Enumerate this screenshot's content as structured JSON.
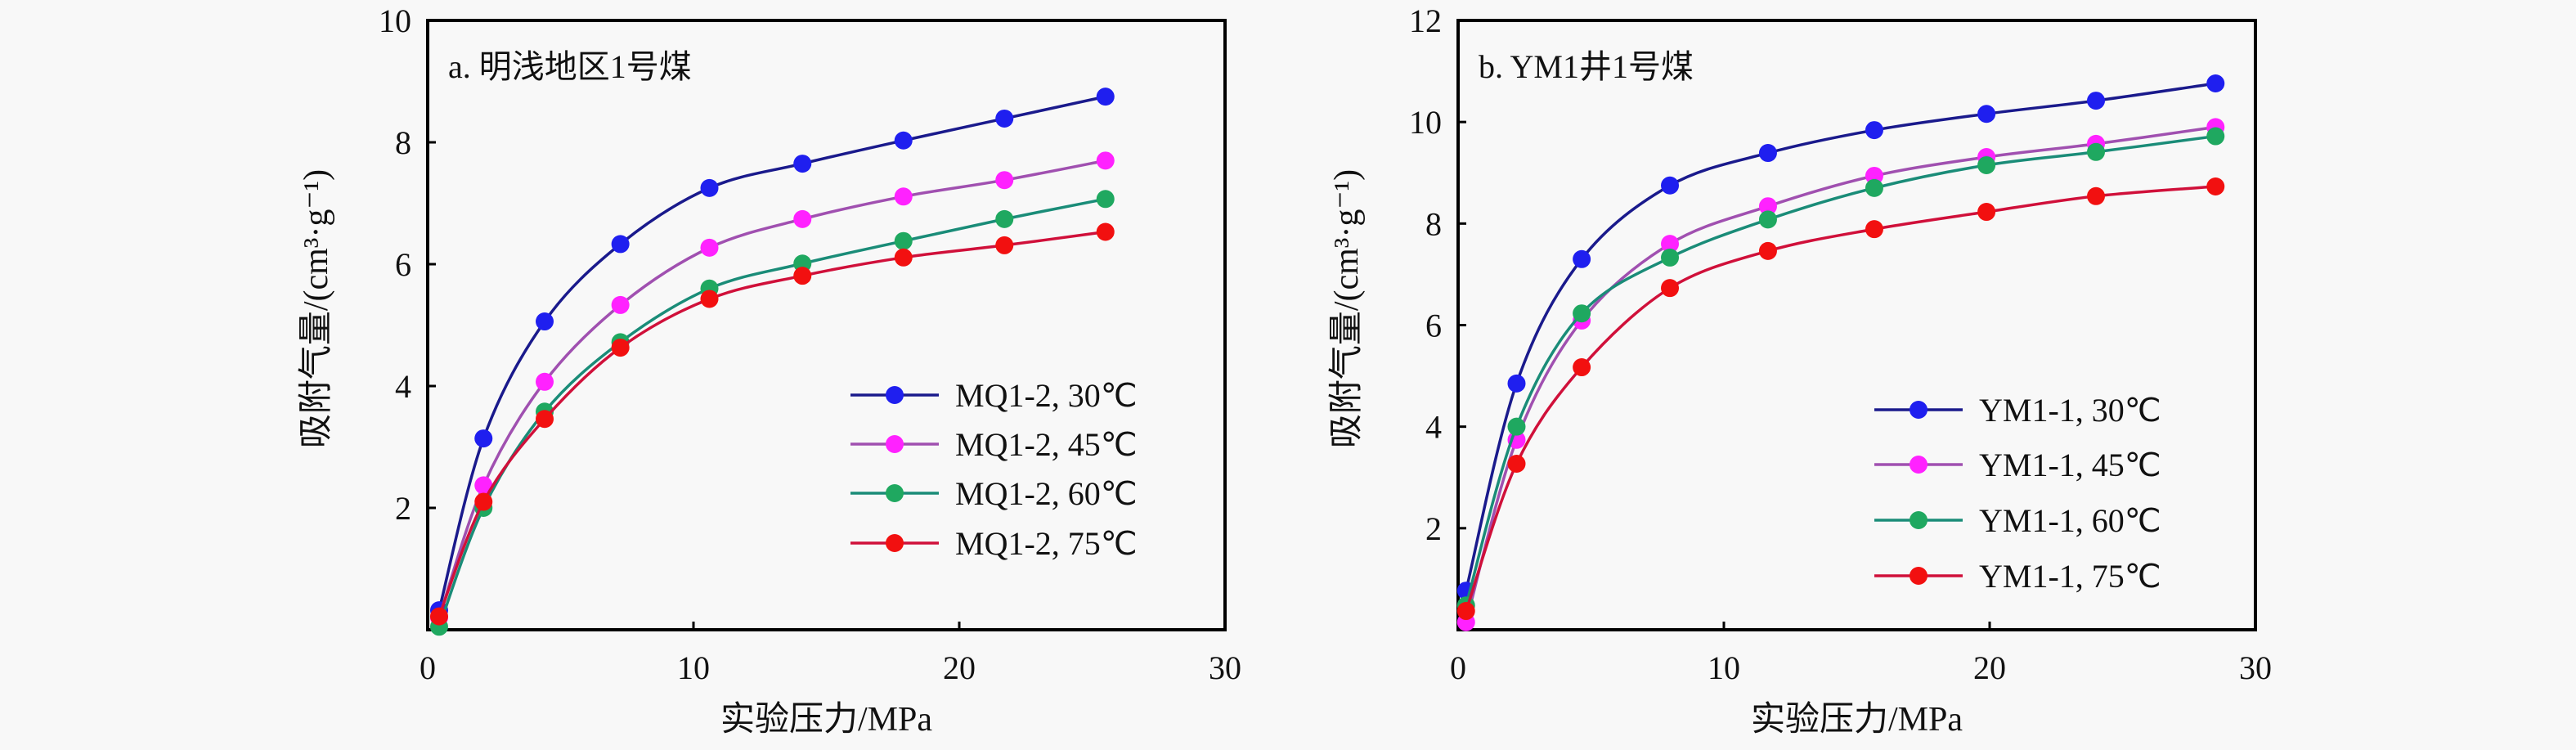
{
  "chart_data": [
    {
      "type": "line",
      "title": "a. 明浅地区1号煤",
      "xlabel": "实验压力/MPa",
      "ylabel": "吸附气量/(cm³·g⁻¹)",
      "xlim": [
        0,
        30
      ],
      "ylim": [
        0,
        10
      ],
      "xticks": [
        "0",
        "10",
        "20",
        "30"
      ],
      "yticks": [
        "2",
        "4",
        "6",
        "8",
        "10"
      ],
      "grid": false,
      "legend_position": "center-right",
      "x": [
        0.43,
        2.1,
        4.4,
        7.25,
        10.6,
        14.1,
        17.9,
        21.7,
        25.5
      ],
      "series": [
        {
          "name": "MQ1-2, 30℃",
          "line_color": "#1a1a8c",
          "marker_color": "#1f1fef",
          "values": [
            0.32,
            3.14,
            5.06,
            6.33,
            7.25,
            7.65,
            8.03,
            8.39,
            8.75
          ]
        },
        {
          "name": "MQ1-2, 45℃",
          "line_color": "#a050b0",
          "marker_color": "#ff22ff",
          "values": [
            0.2,
            2.37,
            4.07,
            5.33,
            6.27,
            6.74,
            7.11,
            7.38,
            7.7
          ]
        },
        {
          "name": "MQ1-2, 60℃",
          "line_color": "#1a8c78",
          "marker_color": "#1fa860",
          "values": [
            0.05,
            2.0,
            3.58,
            4.72,
            5.6,
            6.01,
            6.38,
            6.74,
            7.07
          ]
        },
        {
          "name": "MQ1-2, 75℃",
          "line_color": "#d0103a",
          "marker_color": "#f21010",
          "values": [
            0.22,
            2.1,
            3.46,
            4.63,
            5.43,
            5.81,
            6.11,
            6.31,
            6.53
          ]
        }
      ]
    },
    {
      "type": "line",
      "title": "b. YM1井1号煤",
      "xlabel": "实验压力/MPa",
      "ylabel": "吸附气量/(cm³·g⁻¹)",
      "xlim": [
        0,
        30
      ],
      "ylim": [
        0,
        12
      ],
      "xticks": [
        "0",
        "10",
        "20",
        "30"
      ],
      "yticks": [
        "2",
        "4",
        "6",
        "8",
        "10",
        "12"
      ],
      "grid": false,
      "legend_position": "bottom-right",
      "x": [
        0.3,
        2.2,
        4.65,
        7.97,
        11.66,
        15.66,
        19.88,
        24.0,
        28.5
      ],
      "series": [
        {
          "name": "YM1-1, 30℃",
          "line_color": "#1a1a8c",
          "marker_color": "#1f1fef",
          "values": [
            0.77,
            4.85,
            7.3,
            8.75,
            9.39,
            9.84,
            10.16,
            10.42,
            10.76
          ]
        },
        {
          "name": "YM1-1, 45℃",
          "line_color": "#a050b0",
          "marker_color": "#ff22ff",
          "values": [
            0.15,
            3.74,
            6.09,
            7.6,
            8.34,
            8.94,
            9.31,
            9.57,
            9.9
          ]
        },
        {
          "name": "YM1-1, 60℃",
          "line_color": "#1a8c78",
          "marker_color": "#1fa860",
          "values": [
            0.48,
            4.0,
            6.23,
            7.33,
            8.08,
            8.7,
            9.15,
            9.41,
            9.72
          ]
        },
        {
          "name": "YM1-1, 75℃",
          "line_color": "#d0103a",
          "marker_color": "#f21010",
          "values": [
            0.37,
            3.27,
            5.17,
            6.73,
            7.46,
            7.89,
            8.23,
            8.54,
            8.73
          ]
        }
      ]
    }
  ]
}
